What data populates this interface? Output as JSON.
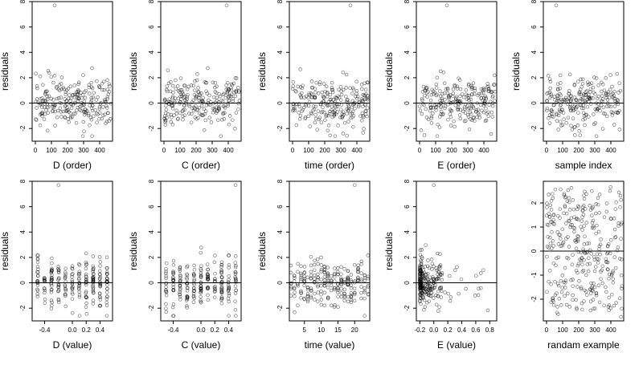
{
  "chart_data": [
    {
      "type": "scatter",
      "xlabel": "D (order)",
      "ylabel": "residuals",
      "xlim": [
        -20,
        480
      ],
      "ylim": [
        -3,
        8
      ],
      "xticks": [
        0,
        100,
        200,
        300,
        400
      ],
      "yticks": [
        -2,
        0,
        2,
        4,
        6,
        8
      ],
      "ytick_labels": [
        "-2",
        "0",
        "2",
        "4",
        "6",
        "8"
      ],
      "grid": false,
      "reference_line_y": 0,
      "x_kind": "order",
      "n_points": 240,
      "seed": 11,
      "outlier": {
        "x": 120,
        "y": 7.7
      }
    },
    {
      "type": "scatter",
      "xlabel": "C (order)",
      "ylabel": "residuals",
      "xlim": [
        -20,
        480
      ],
      "ylim": [
        -3,
        8
      ],
      "xticks": [
        0,
        100,
        200,
        300,
        400
      ],
      "yticks": [
        -2,
        0,
        2,
        4,
        6,
        8
      ],
      "ytick_labels": [
        "-2",
        "0",
        "2",
        "4",
        "6",
        "8"
      ],
      "grid": false,
      "reference_line_y": 0,
      "x_kind": "order",
      "n_points": 240,
      "seed": 23,
      "outlier": {
        "x": 390,
        "y": 7.7
      }
    },
    {
      "type": "scatter",
      "xlabel": "time (order)",
      "ylabel": "residuals",
      "xlim": [
        -20,
        480
      ],
      "ylim": [
        -3,
        8
      ],
      "xticks": [
        0,
        100,
        200,
        300,
        400
      ],
      "yticks": [
        -2,
        0,
        2,
        4,
        6,
        8
      ],
      "ytick_labels": [
        "-2",
        "0",
        "2",
        "4",
        "6",
        "8"
      ],
      "grid": false,
      "reference_line_y": 0,
      "x_kind": "order",
      "n_points": 240,
      "seed": 37,
      "outlier": {
        "x": 360,
        "y": 7.7
      }
    },
    {
      "type": "scatter",
      "xlabel": "E (order)",
      "ylabel": "residuals",
      "xlim": [
        -20,
        480
      ],
      "ylim": [
        -3,
        8
      ],
      "xticks": [
        0,
        100,
        200,
        300,
        400
      ],
      "yticks": [
        -2,
        0,
        2,
        4,
        6,
        8
      ],
      "ytick_labels": [
        "-2",
        "0",
        "2",
        "4",
        "6",
        "8"
      ],
      "grid": false,
      "reference_line_y": 0,
      "x_kind": "order",
      "n_points": 240,
      "seed": 41,
      "outlier": {
        "x": 170,
        "y": 7.7
      }
    },
    {
      "type": "scatter",
      "xlabel": "sample index",
      "ylabel": "residuals",
      "xlim": [
        -20,
        480
      ],
      "ylim": [
        -3,
        8
      ],
      "xticks": [
        0,
        100,
        200,
        300,
        400
      ],
      "yticks": [
        -2,
        0,
        2,
        4,
        6,
        8
      ],
      "ytick_labels": [
        "-2",
        "0",
        "2",
        "4",
        "6",
        "8"
      ],
      "grid": false,
      "reference_line_y": 0,
      "x_kind": "order",
      "n_points": 240,
      "seed": 53,
      "outlier": {
        "x": 60,
        "y": 7.7
      }
    },
    {
      "type": "scatter",
      "xlabel": "D (value)",
      "ylabel": "residuals",
      "xlim": [
        -0.58,
        0.58
      ],
      "ylim": [
        -3,
        8
      ],
      "xticks": [
        -0.4,
        0.0,
        0.2,
        0.4
      ],
      "xtick_labels": [
        "-0.4",
        "0.0",
        "0.2",
        "0.4"
      ],
      "yticks": [
        -2,
        0,
        2,
        4,
        6,
        8
      ],
      "ytick_labels": [
        "-2",
        "0",
        "2",
        "4",
        "6",
        "8"
      ],
      "grid": false,
      "reference_line_y": 0,
      "x_kind": "discrete",
      "x_levels": [
        -0.5,
        -0.4,
        -0.3,
        -0.2,
        -0.1,
        0.0,
        0.1,
        0.2,
        0.3,
        0.4,
        0.5
      ],
      "n_points": 240,
      "seed": 61,
      "outlier": {
        "x": -0.2,
        "y": 7.7
      }
    },
    {
      "type": "scatter",
      "xlabel": "C (value)",
      "ylabel": "residuals",
      "xlim": [
        -0.58,
        0.58
      ],
      "ylim": [
        -3,
        8
      ],
      "xticks": [
        -0.4,
        0.0,
        0.2,
        0.4
      ],
      "xtick_labels": [
        "-0.4",
        "0.0",
        "0.2",
        "0.4"
      ],
      "yticks": [
        -2,
        0,
        2,
        4,
        6,
        8
      ],
      "ytick_labels": [
        "-2",
        "0",
        "2",
        "4",
        "6",
        "8"
      ],
      "grid": false,
      "reference_line_y": 0,
      "x_kind": "discrete",
      "x_levels": [
        -0.5,
        -0.4,
        -0.3,
        -0.2,
        -0.1,
        0.0,
        0.1,
        0.2,
        0.3,
        0.4,
        0.5
      ],
      "n_points": 240,
      "seed": 71,
      "outlier": {
        "x": 0.5,
        "y": 7.7
      }
    },
    {
      "type": "scatter",
      "xlabel": "time (value)",
      "ylabel": "residuals",
      "xlim": [
        0.5,
        24.5
      ],
      "ylim": [
        -3,
        8
      ],
      "xticks": [
        5,
        10,
        15,
        20
      ],
      "xtick_labels": [
        "5",
        "10",
        "15",
        "20"
      ],
      "yticks": [
        -2,
        0,
        2,
        4,
        6,
        8
      ],
      "ytick_labels": [
        "-2",
        "0",
        "2",
        "4",
        "6",
        "8"
      ],
      "grid": false,
      "reference_line_y": 0,
      "x_kind": "discrete",
      "x_levels": [
        1,
        2,
        3,
        4,
        5,
        6,
        7,
        8,
        9,
        10,
        11,
        12,
        13,
        14,
        15,
        16,
        17,
        18,
        19,
        20,
        21,
        22,
        23,
        24
      ],
      "n_points": 240,
      "seed": 83,
      "outlier": {
        "x": 20,
        "y": 7.7
      }
    },
    {
      "type": "scatter",
      "xlabel": "E (value)",
      "ylabel": "residuals",
      "xlim": [
        -0.25,
        0.9
      ],
      "ylim": [
        -3,
        8
      ],
      "xticks": [
        -0.2,
        0.0,
        0.2,
        0.4,
        0.6,
        0.8
      ],
      "xtick_labels": [
        "-0.2",
        "0.0",
        "0.2",
        "0.4",
        "0.6",
        "0.8"
      ],
      "yticks": [
        -2,
        0,
        2,
        4,
        6,
        8
      ],
      "ytick_labels": [
        "-2",
        "0",
        "2",
        "4",
        "6",
        "8"
      ],
      "grid": false,
      "reference_line_y": 0,
      "x_kind": "skewed",
      "n_points": 240,
      "seed": 97,
      "outlier": {
        "x": 0.0,
        "y": 7.7
      }
    },
    {
      "type": "scatter",
      "xlabel": "randam example",
      "ylabel": "",
      "xlim": [
        -20,
        480
      ],
      "ylim": [
        -2.9,
        2.9
      ],
      "xticks": [
        0,
        100,
        200,
        300,
        400
      ],
      "yticks": [
        -2,
        -1,
        0,
        1,
        2
      ],
      "ytick_labels": [
        "-2",
        "-1",
        "0",
        "1",
        "2"
      ],
      "grid": false,
      "reference_line_y": 0,
      "x_kind": "order",
      "n_points": 320,
      "seed": 103,
      "dist": "uniform",
      "outlier": null
    }
  ]
}
